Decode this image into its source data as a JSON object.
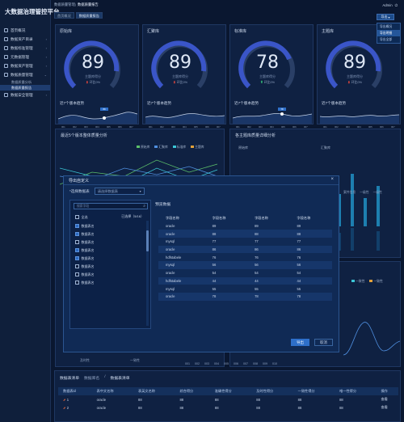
{
  "app": {
    "title": "大数据治理管控平台"
  },
  "sidebar": {
    "items": [
      {
        "label": "首页概况"
      },
      {
        "label": "数据资产目录"
      },
      {
        "label": "数据标准管理"
      },
      {
        "label": "元数据管理"
      },
      {
        "label": "数据资产管理"
      },
      {
        "label": "数据质量管理"
      }
    ],
    "sub_items": [
      {
        "label": "数据质量分析"
      },
      {
        "label": "数据质量报告"
      }
    ],
    "last_item": {
      "label": "数据安全管理"
    }
  },
  "topbar": {
    "crumb": "数据质量管理",
    "crumb_active": "数据质量报告",
    "user": "Admin",
    "power": "⏻"
  },
  "tabs": [
    {
      "label": "首页概况"
    },
    {
      "label": "数据质量报告"
    }
  ],
  "action": {
    "label": "导出"
  },
  "dropdown": {
    "items": [
      "导出概况",
      "导出明细",
      "导出全部"
    ]
  },
  "gauges": [
    {
      "title": "原始库",
      "value": "89",
      "label": "主题库得分",
      "change": "环比0%",
      "dir": "down",
      "trend_title": "近7个版本趋势",
      "tooltip": "89"
    },
    {
      "title": "汇聚库",
      "value": "89",
      "label": "主题库得分",
      "change": "环比0%",
      "dir": "down",
      "trend_title": "近7个版本趋势",
      "tooltip": ""
    },
    {
      "title": "标准库",
      "value": "78",
      "label": "主题库得分",
      "change": "环比0%",
      "dir": "up",
      "trend_title": "近7个版本趋势",
      "tooltip": "78"
    },
    {
      "title": "主题库",
      "value": "89",
      "label": "主题库得分",
      "change": "环比0%",
      "dir": "down",
      "trend_title": "近7个版本趋势",
      "tooltip": ""
    }
  ],
  "gauge_colors": {
    "track": "#2a3f66",
    "fill": "#3a55c8",
    "fill2": "#5a72e0"
  },
  "trend_xticks": [
    "001",
    "002",
    "003",
    "004",
    "005",
    "006",
    "007"
  ],
  "panels": {
    "left_title": "最近5个版本整体质量分析",
    "left_legend": [
      "原始库",
      "汇聚库",
      "标准库",
      "主题库"
    ],
    "right_title": "各主题库质量详细分析",
    "right_sub": [
      "原始库",
      "汇聚库"
    ],
    "right_cats": [
      "案件信息",
      "一级性",
      "一级性"
    ],
    "lower_legend": [
      "一致性",
      "一致性"
    ],
    "lower_xticks": [
      "001",
      "002",
      "003",
      "004",
      "005",
      "006",
      "007",
      "008",
      "009",
      "010"
    ],
    "lower_left_labels": [
      "及时性",
      "一致性"
    ]
  },
  "modal": {
    "title": "导出自定义",
    "select_label": "*选择数据表",
    "select_placeholder": "请选择数据表",
    "search_placeholder": "搜索字段",
    "select_all": "全选",
    "count": "已选择（5/16）",
    "list": [
      {
        "label": "数据表名",
        "on": true
      },
      {
        "label": "数据表名",
        "on": true
      },
      {
        "label": "数据表名",
        "on": false
      },
      {
        "label": "数据表名",
        "on": true
      },
      {
        "label": "数据表名",
        "on": true
      },
      {
        "label": "数据表名",
        "on": false
      },
      {
        "label": "数据表名",
        "on": false
      },
      {
        "label": "数据表名",
        "on": false
      }
    ],
    "preview_title": "预览数据",
    "columns": [
      "字段名称",
      "字段名称",
      "字段名称",
      "字段名称"
    ],
    "rows": [
      [
        "oracle",
        "89",
        "89",
        "89"
      ],
      [
        "oracle",
        "88",
        "88",
        "88"
      ],
      [
        "mysql",
        "77",
        "77",
        "77"
      ],
      [
        "oracle",
        "86",
        "86",
        "86"
      ],
      [
        "hdfstabele",
        "76",
        "76",
        "76"
      ],
      [
        "mysql",
        "56",
        "56",
        "56"
      ],
      [
        "oracle",
        "54",
        "54",
        "54"
      ],
      [
        "hdfstabele",
        "44",
        "44",
        "44"
      ],
      [
        "mysql",
        "55",
        "55",
        "55"
      ],
      [
        "oracle",
        "78",
        "78",
        "78"
      ]
    ],
    "ok": "导出",
    "cancel": "取消"
  },
  "bottom": {
    "title": "数据表清单",
    "crumb": "数据库名",
    "crumb_active": "数据表清单",
    "columns": [
      "数据表id",
      "表中文名称",
      "表英文名称",
      "综合得分",
      "准确性得分",
      "及时性得分",
      "一致性得分",
      "唯一性得分",
      "操作"
    ],
    "rows": [
      [
        "1",
        "oracle",
        "88",
        "88",
        "88",
        "88",
        "88",
        "88",
        "查看"
      ],
      [
        "2",
        "oracle",
        "88",
        "88",
        "88",
        "88",
        "88",
        "88",
        "查看"
      ]
    ]
  }
}
